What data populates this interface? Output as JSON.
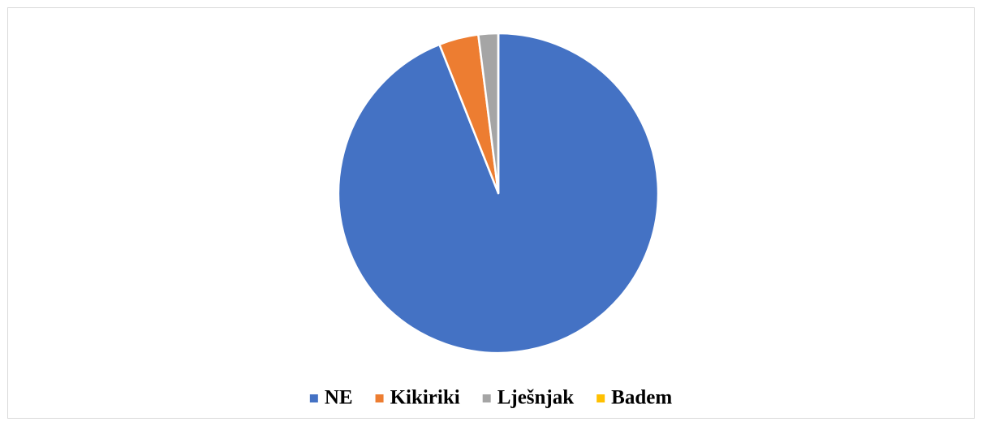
{
  "chart_data": {
    "type": "pie",
    "categories": [
      "NE",
      "Kikiriki",
      "Lješnjak",
      "Badem"
    ],
    "values": [
      94,
      4,
      2,
      0
    ],
    "colors": [
      "#4472c4",
      "#ed7d31",
      "#a5a5a5",
      "#ffc000"
    ],
    "legend": "bottom"
  }
}
